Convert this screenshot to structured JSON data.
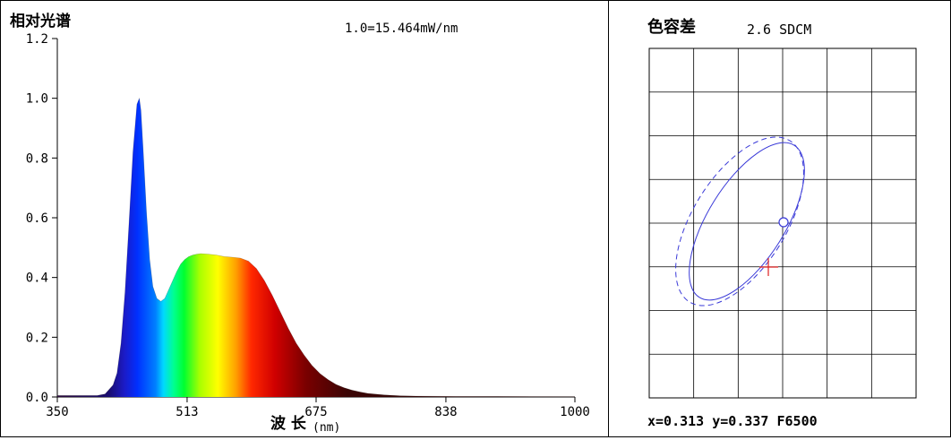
{
  "spectrum": {
    "title": "相对光谱",
    "annotation": "1.0=15.464mW/nm",
    "xlabel_main": "波 长",
    "xlabel_unit": "(nm)",
    "chart_data": {
      "type": "area",
      "xlim": [
        350,
        1000
      ],
      "ylim": [
        0,
        1.2
      ],
      "x_ticks": [
        350,
        513,
        675,
        838,
        1000
      ],
      "y_ticks": [
        "0.0",
        "0.2",
        "0.4",
        "0.6",
        "0.8",
        "1.0",
        "1.2"
      ],
      "x": [
        350,
        380,
        400,
        410,
        420,
        425,
        430,
        435,
        440,
        445,
        450,
        453,
        455,
        458,
        462,
        466,
        470,
        475,
        480,
        485,
        490,
        495,
        500,
        505,
        510,
        515,
        520,
        525,
        530,
        540,
        550,
        560,
        570,
        580,
        590,
        600,
        610,
        620,
        630,
        640,
        650,
        660,
        670,
        680,
        690,
        700,
        710,
        720,
        730,
        740,
        760,
        780,
        800,
        850,
        900,
        1000
      ],
      "y": [
        0.005,
        0.005,
        0.005,
        0.01,
        0.04,
        0.08,
        0.18,
        0.35,
        0.58,
        0.82,
        0.98,
        1.0,
        0.96,
        0.82,
        0.62,
        0.46,
        0.37,
        0.33,
        0.32,
        0.33,
        0.36,
        0.39,
        0.42,
        0.445,
        0.46,
        0.47,
        0.475,
        0.478,
        0.48,
        0.478,
        0.475,
        0.47,
        0.468,
        0.465,
        0.455,
        0.43,
        0.39,
        0.34,
        0.285,
        0.23,
        0.18,
        0.14,
        0.105,
        0.078,
        0.058,
        0.042,
        0.031,
        0.023,
        0.017,
        0.012,
        0.007,
        0.004,
        0.003,
        0.002,
        0.002,
        0.001
      ]
    }
  },
  "sdcm": {
    "title": "色容差",
    "value": "2.6 SDCM",
    "readout": "x=0.313 y=0.337 F6500",
    "colors": {
      "ellipse": "#3a3ad8",
      "measured": "#e02020",
      "grid": "#000000"
    }
  }
}
